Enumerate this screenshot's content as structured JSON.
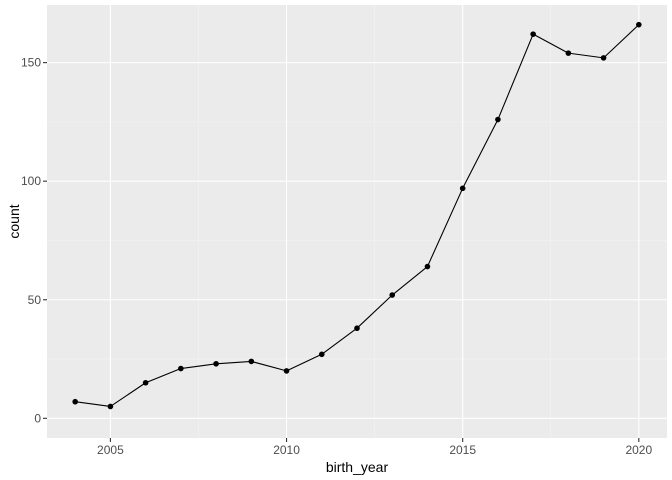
{
  "chart_data": {
    "type": "line",
    "xlabel": "birth_year",
    "ylabel": "count",
    "xlim": [
      2003.2,
      2020.8
    ],
    "ylim": [
      -8.3,
      174.3
    ],
    "x_ticks": [
      2005,
      2010,
      2015,
      2020
    ],
    "x_ticks_minor": [
      2007.5,
      2012.5,
      2017.5
    ],
    "y_ticks": [
      0,
      50,
      100,
      150
    ],
    "y_ticks_minor": [
      25,
      75,
      125
    ],
    "grid": true,
    "legend": "none",
    "series": [
      {
        "x": [
          2004,
          2005,
          2006,
          2007,
          2008,
          2009,
          2010,
          2011,
          2012,
          2013,
          2014,
          2015,
          2016,
          2017,
          2018,
          2019,
          2020
        ],
        "values": [
          7,
          5,
          15,
          21,
          23,
          24,
          20,
          27,
          38,
          52,
          64,
          97,
          126,
          162,
          154,
          152,
          166
        ],
        "color": "#000000",
        "markers": true
      }
    ],
    "colors": {
      "panel_background": "#ebebeb",
      "grid_major": "#ffffff",
      "grid_minor": "#f5f5f5",
      "tick_mark": "#333333",
      "tick_label": "#4d4d4d",
      "axis_title": "#000000"
    }
  }
}
